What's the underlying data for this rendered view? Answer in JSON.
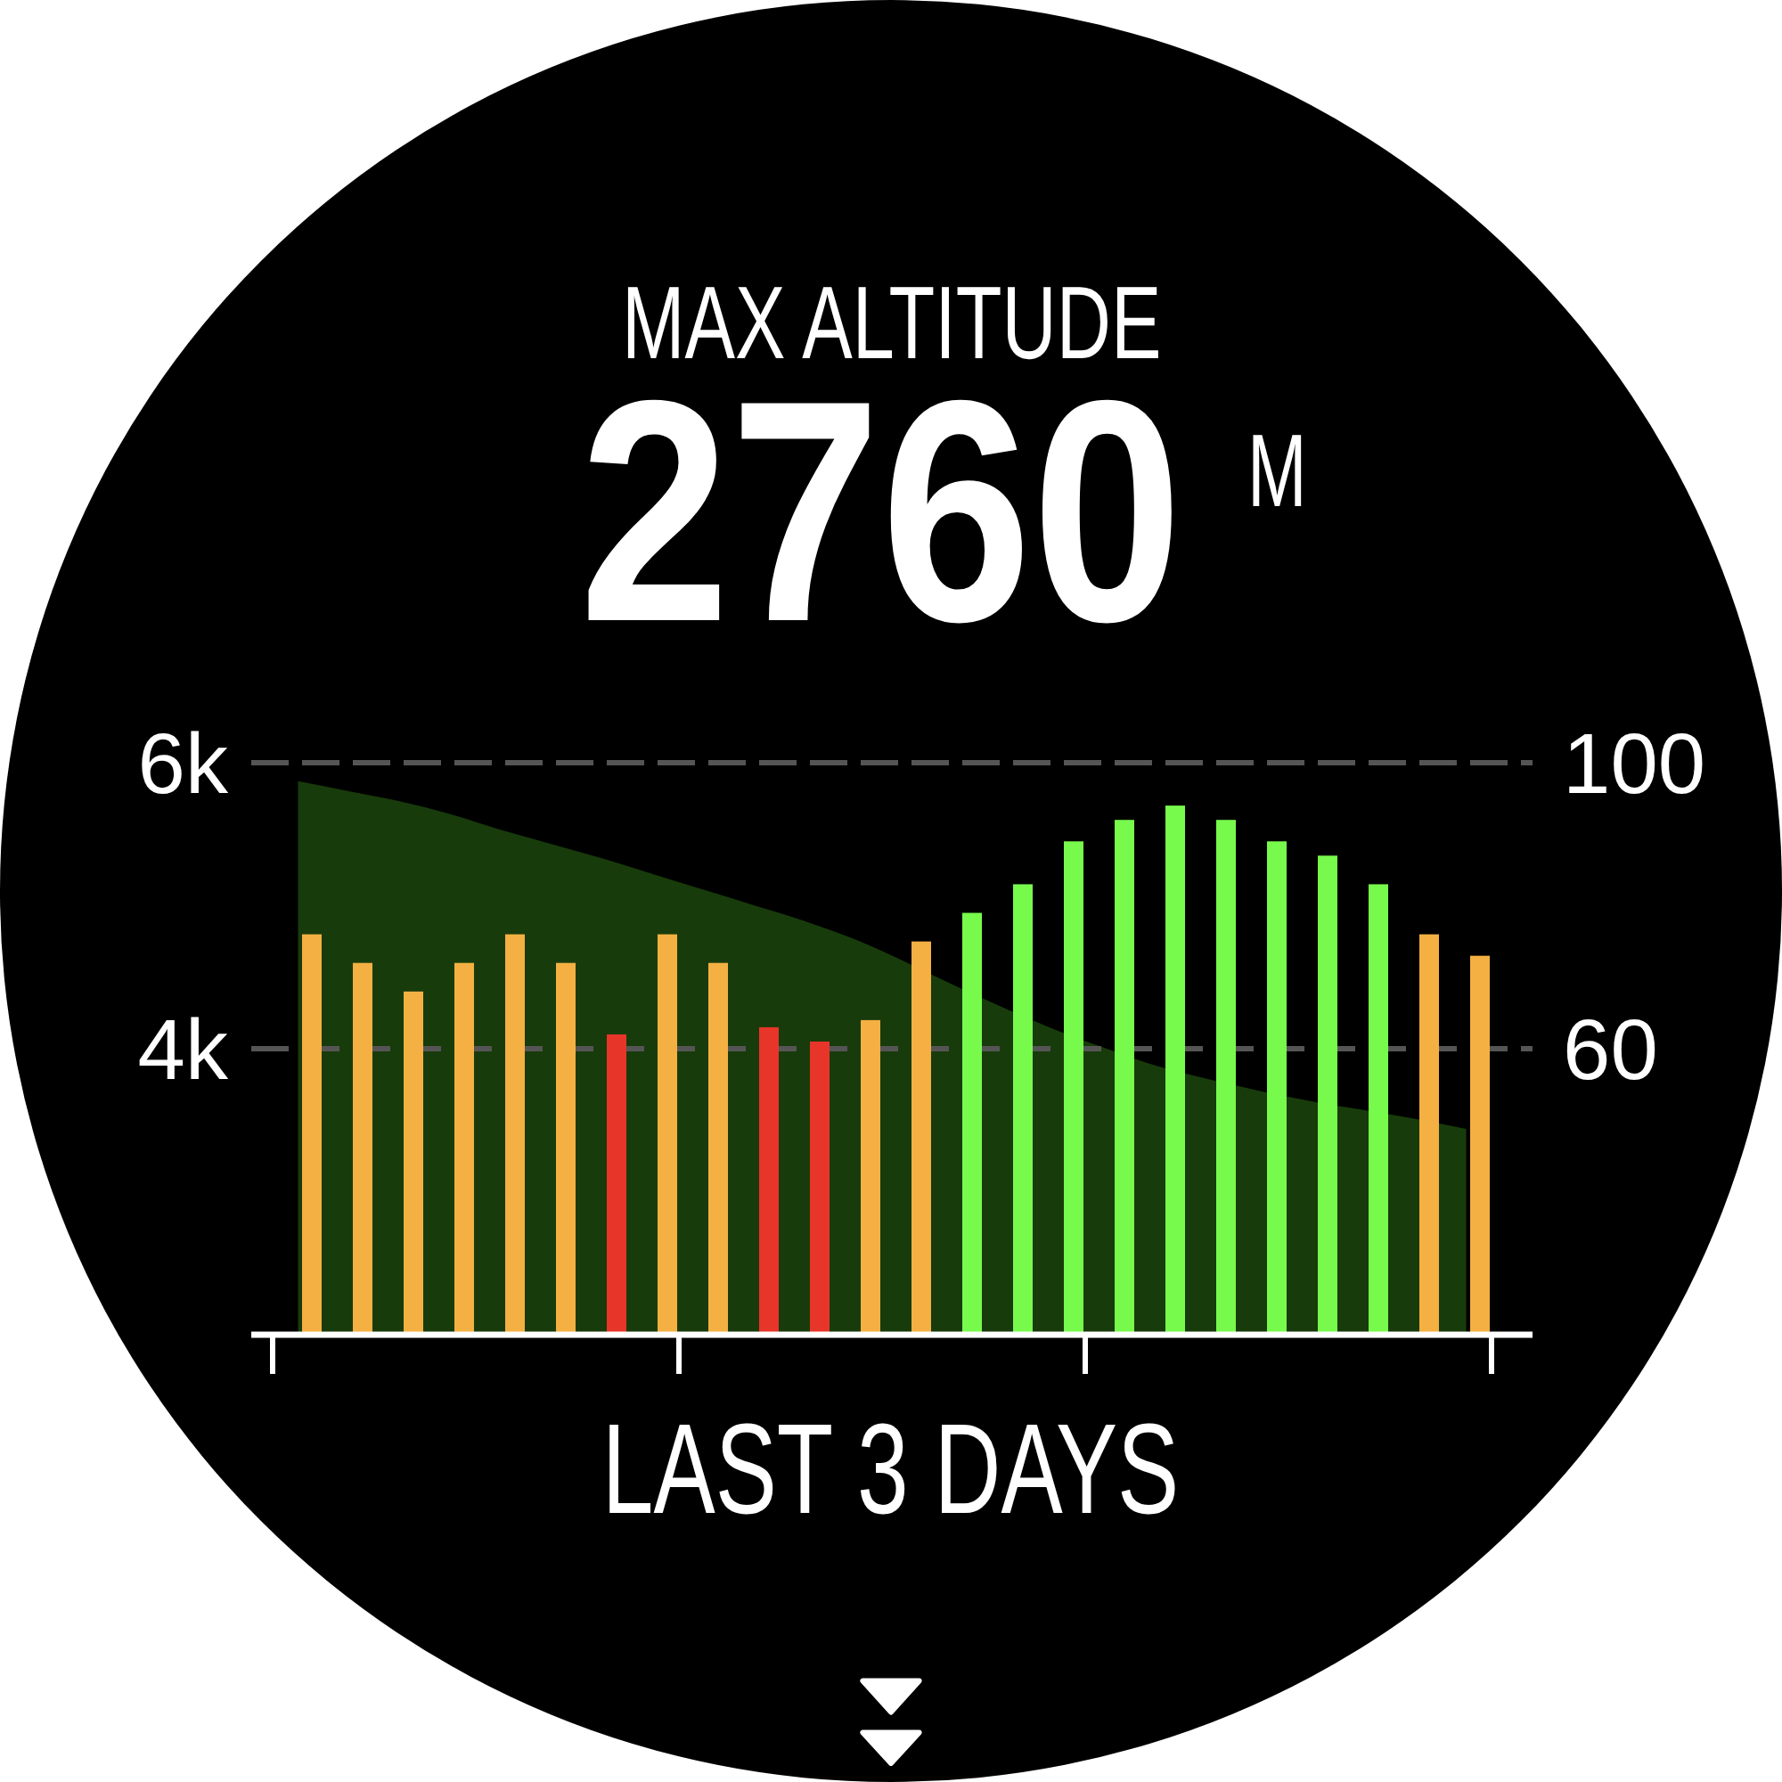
{
  "chart_data": {
    "type": "bar",
    "title": "MAX ALTITUDE",
    "subtitle": "2760 M",
    "xlabel": "LAST 3 DAYS",
    "categories": [
      null,
      null,
      null,
      null,
      null,
      null,
      null,
      null,
      null,
      null,
      null,
      null,
      null,
      null,
      null,
      null,
      null,
      null,
      null,
      null,
      null,
      null,
      null,
      null
    ],
    "series": [
      {
        "type": "area",
        "color": "#183b0b",
        "values": [
          5870,
          5800,
          5730,
          5640,
          5530,
          5430,
          5330,
          5220,
          5110,
          5000,
          4890,
          4760,
          4600,
          4430,
          4270,
          4120,
          3990,
          3870,
          3780,
          3700,
          3630,
          3570,
          3510,
          3440
        ]
      },
      {
        "type": "bar",
        "axis": "y2",
        "colors": [
          "#f4b042",
          "#f4b042",
          "#f4b042",
          "#f4b042",
          "#f4b042",
          "#f4b042",
          "#e8352a",
          "#f4b042",
          "#f4b042",
          "#e8352a",
          "#e8352a",
          "#f4b042",
          "#f4b042",
          "#78fa4c",
          "#78fa4c",
          "#78fa4c",
          "#78fa4c",
          "#78fa4c",
          "#78fa4c",
          "#78fa4c",
          "#78fa4c",
          "#78fa4c",
          "#f4b042",
          "#f4b042"
        ],
        "values": [
          76,
          72,
          68,
          72,
          76,
          72,
          62,
          76,
          72,
          63,
          61,
          64,
          75,
          79,
          83,
          89,
          92,
          94,
          92,
          89,
          87,
          83,
          76,
          73
        ]
      }
    ],
    "ylim": [
      2000,
      6000
    ],
    "yticks": [
      {
        "value": 4000,
        "label": "4k"
      },
      {
        "value": 6000,
        "label": "6k"
      }
    ],
    "y2lim": [
      20,
      100
    ],
    "y2ticks": [
      60,
      100
    ],
    "grid": "y"
  }
}
